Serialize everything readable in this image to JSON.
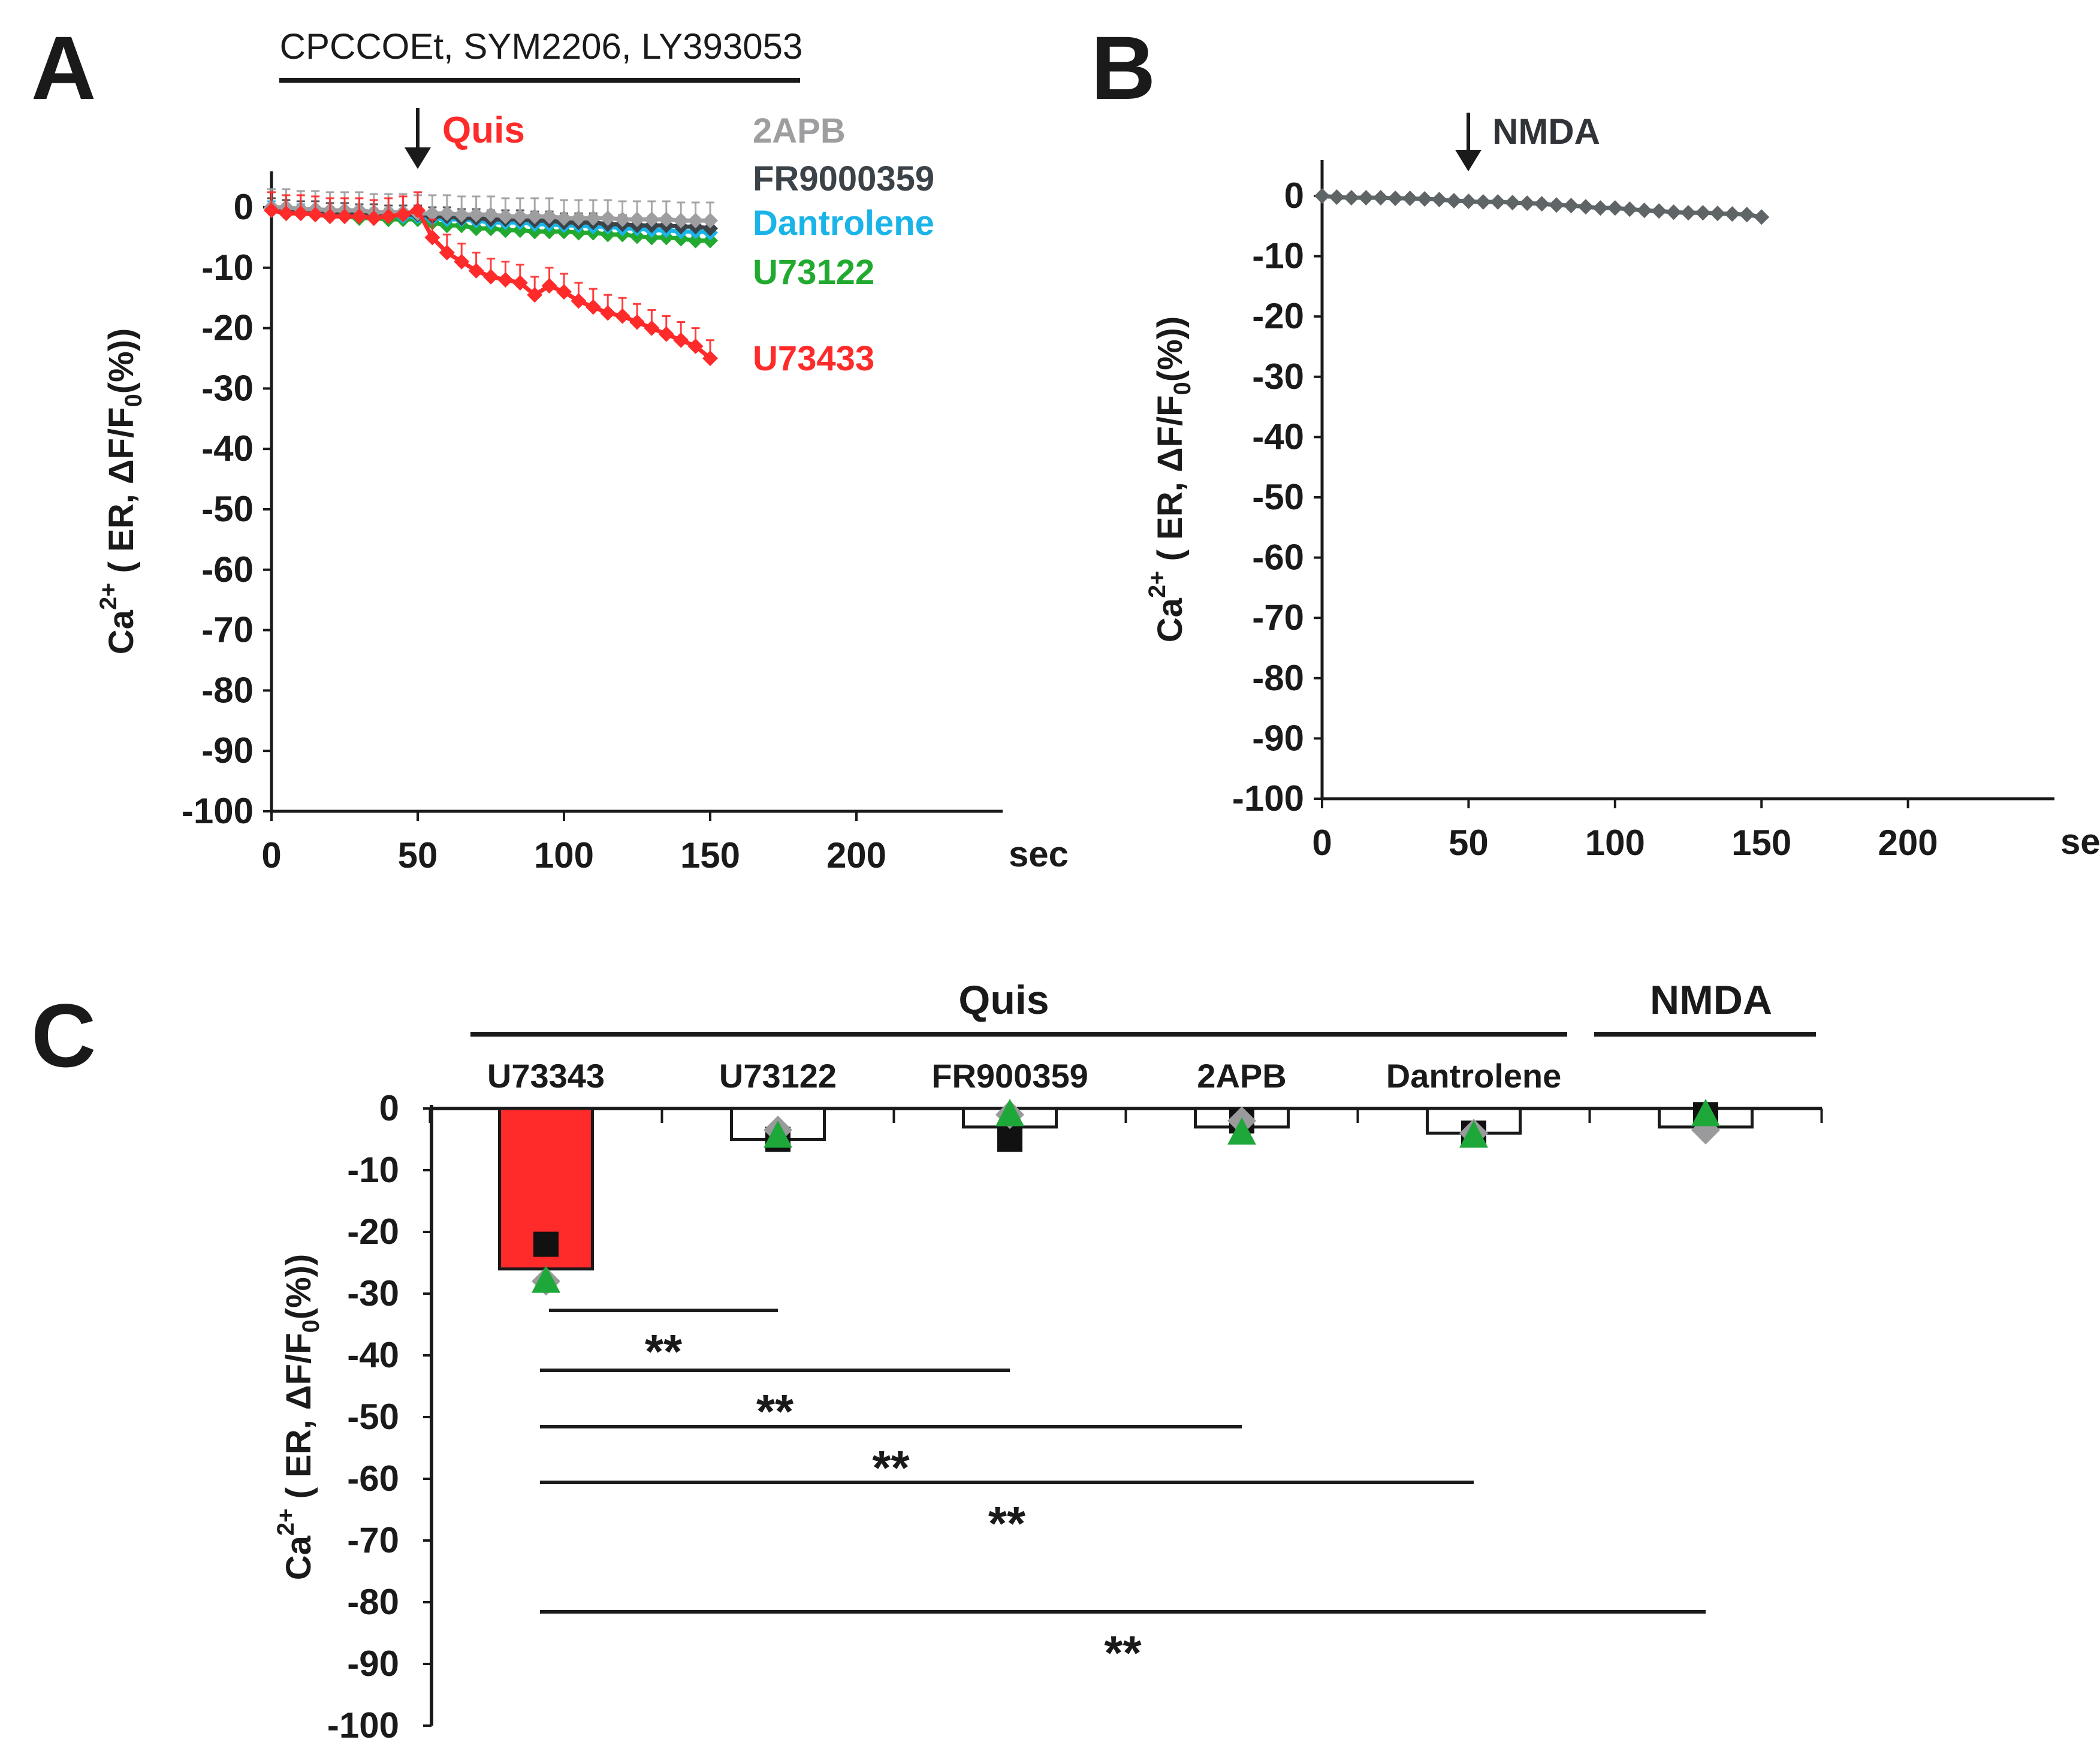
{
  "panels": {
    "A": {
      "letter": "A",
      "treatment": "CPCCOEt, SYM2206, LY393053",
      "stimulus": "Quis",
      "stimulus_color": "#ff2a2a",
      "ylabel": "Ca2+ ( ER, ΔF/F0(%))",
      "x_unit": "sec",
      "legend": [
        {
          "name": "2APB",
          "color": "#9e9ea0"
        },
        {
          "name": "FR9000359",
          "color": "#3c4348"
        },
        {
          "name": "Dantrolene",
          "color": "#1ab4e8"
        },
        {
          "name": "U73122",
          "color": "#22aa30"
        },
        {
          "name": "U73433",
          "color": "#ff2a2a"
        }
      ]
    },
    "B": {
      "letter": "B",
      "stimulus": "NMDA",
      "stimulus_color": "#303438",
      "ylabel": "Ca2+ ( ER, ΔF/F0(%))",
      "x_unit": "sec"
    },
    "C": {
      "letter": "C",
      "group_labels": {
        "quis": "Quis",
        "nmda": "NMDA"
      },
      "ylabel": "Ca2+ ( ER, ΔF/F0(%))",
      "significance": [
        {
          "from": "U73343",
          "to": "U73122",
          "label": "**"
        },
        {
          "from": "U73343",
          "to": "FR900359",
          "label": "**"
        },
        {
          "from": "U73343",
          "to": "2APB",
          "label": "**"
        },
        {
          "from": "U73343",
          "to": "Dantrolene",
          "label": "**"
        },
        {
          "from": "U73343",
          "to": "NMDA",
          "label": "**"
        }
      ]
    }
  },
  "chart_data": [
    {
      "type": "line",
      "panel": "A",
      "xlabel": "sec",
      "ylabel": "Ca2+ ( ER, ΔF/F0(%))",
      "xlim": [
        0,
        250
      ],
      "ylim": [
        -100,
        0
      ],
      "xticks": [
        0,
        50,
        100,
        150,
        200
      ],
      "yticks": [
        0,
        -10,
        -20,
        -30,
        -40,
        -50,
        -60,
        -70,
        -80,
        -90,
        -100
      ],
      "x": [
        0,
        5,
        10,
        15,
        20,
        25,
        30,
        35,
        40,
        45,
        50,
        55,
        60,
        65,
        70,
        75,
        80,
        85,
        90,
        95,
        100,
        105,
        110,
        115,
        120,
        125,
        130,
        135,
        140,
        145,
        150
      ],
      "series": [
        {
          "name": "U73122",
          "color": "#22aa30",
          "values": [
            -0.5,
            -1,
            -1,
            -1.2,
            -1.5,
            -1.5,
            -1.8,
            -1.8,
            -2,
            -2,
            -2,
            -2.5,
            -3,
            -3,
            -3.5,
            -3.5,
            -3.8,
            -3.8,
            -4,
            -4,
            -4,
            -4.2,
            -4.2,
            -4.5,
            -4.5,
            -4.8,
            -5,
            -5,
            -5.2,
            -5.5,
            -5.5
          ],
          "error": 0.8
        },
        {
          "name": "Dantrolene",
          "color": "#1ab4e8",
          "values": [
            0,
            -0.5,
            -0.5,
            -0.8,
            -1,
            -1,
            -1,
            -1.2,
            -1.2,
            -1.5,
            -1.5,
            -1.8,
            -2,
            -2,
            -2.2,
            -2.5,
            -2.5,
            -2.5,
            -2.8,
            -2.8,
            -3,
            -3,
            -3.2,
            -3.2,
            -3.5,
            -3.5,
            -3.8,
            -3.8,
            -4,
            -4,
            -4.2
          ],
          "error": 1.0
        },
        {
          "name": "FR9000359",
          "color": "#3c4348",
          "values": [
            0,
            -0.3,
            -0.5,
            -0.5,
            -0.8,
            -0.8,
            -1,
            -1,
            -1.2,
            -1.2,
            -1.2,
            -1.5,
            -1.5,
            -1.8,
            -1.8,
            -2,
            -2,
            -2,
            -2.2,
            -2.2,
            -2.5,
            -2.5,
            -2.5,
            -2.8,
            -2.8,
            -3,
            -3,
            -3,
            -3.2,
            -3.2,
            -3.5
          ],
          "error": 1.5
        },
        {
          "name": "2APB",
          "color": "#9e9ea0",
          "values": [
            0,
            0,
            -0.3,
            -0.3,
            -0.5,
            -0.5,
            -0.5,
            -0.8,
            -0.8,
            -0.8,
            -1,
            -1,
            -1,
            -1.2,
            -1.2,
            -1.2,
            -1.5,
            -1.5,
            -1.5,
            -1.5,
            -1.8,
            -1.8,
            -1.8,
            -1.8,
            -2,
            -2,
            -2,
            -2,
            -2.2,
            -2.2,
            -2.2
          ],
          "error": 3.0
        },
        {
          "name": "U73433",
          "color": "#ff2a2a",
          "values": [
            -0.5,
            -1,
            -1,
            -1.2,
            -1.5,
            -1.5,
            -1.5,
            -1.8,
            -1.5,
            -1.2,
            -0.5,
            -5,
            -7.5,
            -9,
            -10.5,
            -11.5,
            -12,
            -12.5,
            -14.5,
            -13,
            -14,
            -15.5,
            -16.5,
            -17.5,
            -18,
            -19,
            -20,
            -21,
            -22,
            -23,
            -25
          ],
          "error": 3.0
        }
      ]
    },
    {
      "type": "line",
      "panel": "B",
      "xlabel": "sec",
      "ylabel": "Ca2+ ( ER, ΔF/F0(%))",
      "xlim": [
        0,
        250
      ],
      "ylim": [
        -100,
        0
      ],
      "xticks": [
        0,
        50,
        100,
        150,
        200
      ],
      "yticks": [
        0,
        -10,
        -20,
        -30,
        -40,
        -50,
        -60,
        -70,
        -80,
        -90,
        -100
      ],
      "series": [
        {
          "name": "NMDA",
          "color": "#5f6467",
          "x": [
            0,
            5,
            10,
            15,
            20,
            25,
            30,
            35,
            40,
            45,
            50,
            55,
            60,
            65,
            70,
            75,
            80,
            85,
            90,
            95,
            100,
            105,
            110,
            115,
            120,
            125,
            130,
            135,
            140,
            145,
            150
          ],
          "values": [
            0,
            -0.2,
            -0.3,
            -0.3,
            -0.3,
            -0.4,
            -0.4,
            -0.5,
            -0.6,
            -0.8,
            -0.9,
            -1.0,
            -1.0,
            -1.1,
            -1.2,
            -1.3,
            -1.5,
            -1.6,
            -1.8,
            -2.0,
            -2.0,
            -2.2,
            -2.4,
            -2.5,
            -2.7,
            -2.8,
            -2.8,
            -2.9,
            -3.0,
            -3.1,
            -3.5
          ]
        }
      ]
    },
    {
      "type": "bar",
      "panel": "C",
      "ylabel": "Ca2+ ( ER, ΔF/F0(%))",
      "ylim": [
        -100,
        0
      ],
      "yticks": [
        0,
        -10,
        -20,
        -30,
        -40,
        -50,
        -60,
        -70,
        -80,
        -90,
        -100
      ],
      "categories": [
        "U73343",
        "U73122",
        "FR900359",
        "2APB",
        "Dantrolene",
        ""
      ],
      "values": [
        -26,
        -5,
        -3,
        -3,
        -4,
        -3
      ],
      "bar_colors": [
        "#ff2a2a",
        "#ffffff",
        "#ffffff",
        "#ffffff",
        "#ffffff",
        "#ffffff"
      ],
      "points": [
        {
          "shape": "square",
          "color": "#111111",
          "values": [
            -22,
            -5,
            -5,
            -2,
            -4,
            -1
          ]
        },
        {
          "shape": "diamond",
          "color": "#9a9a9c",
          "values": [
            -28,
            -3.5,
            -1,
            -2,
            -4,
            -3.5
          ]
        },
        {
          "shape": "triangle",
          "color": "#1fa83a",
          "values": [
            -28,
            -4.5,
            -1,
            -4,
            -4.5,
            -1
          ]
        }
      ]
    }
  ]
}
